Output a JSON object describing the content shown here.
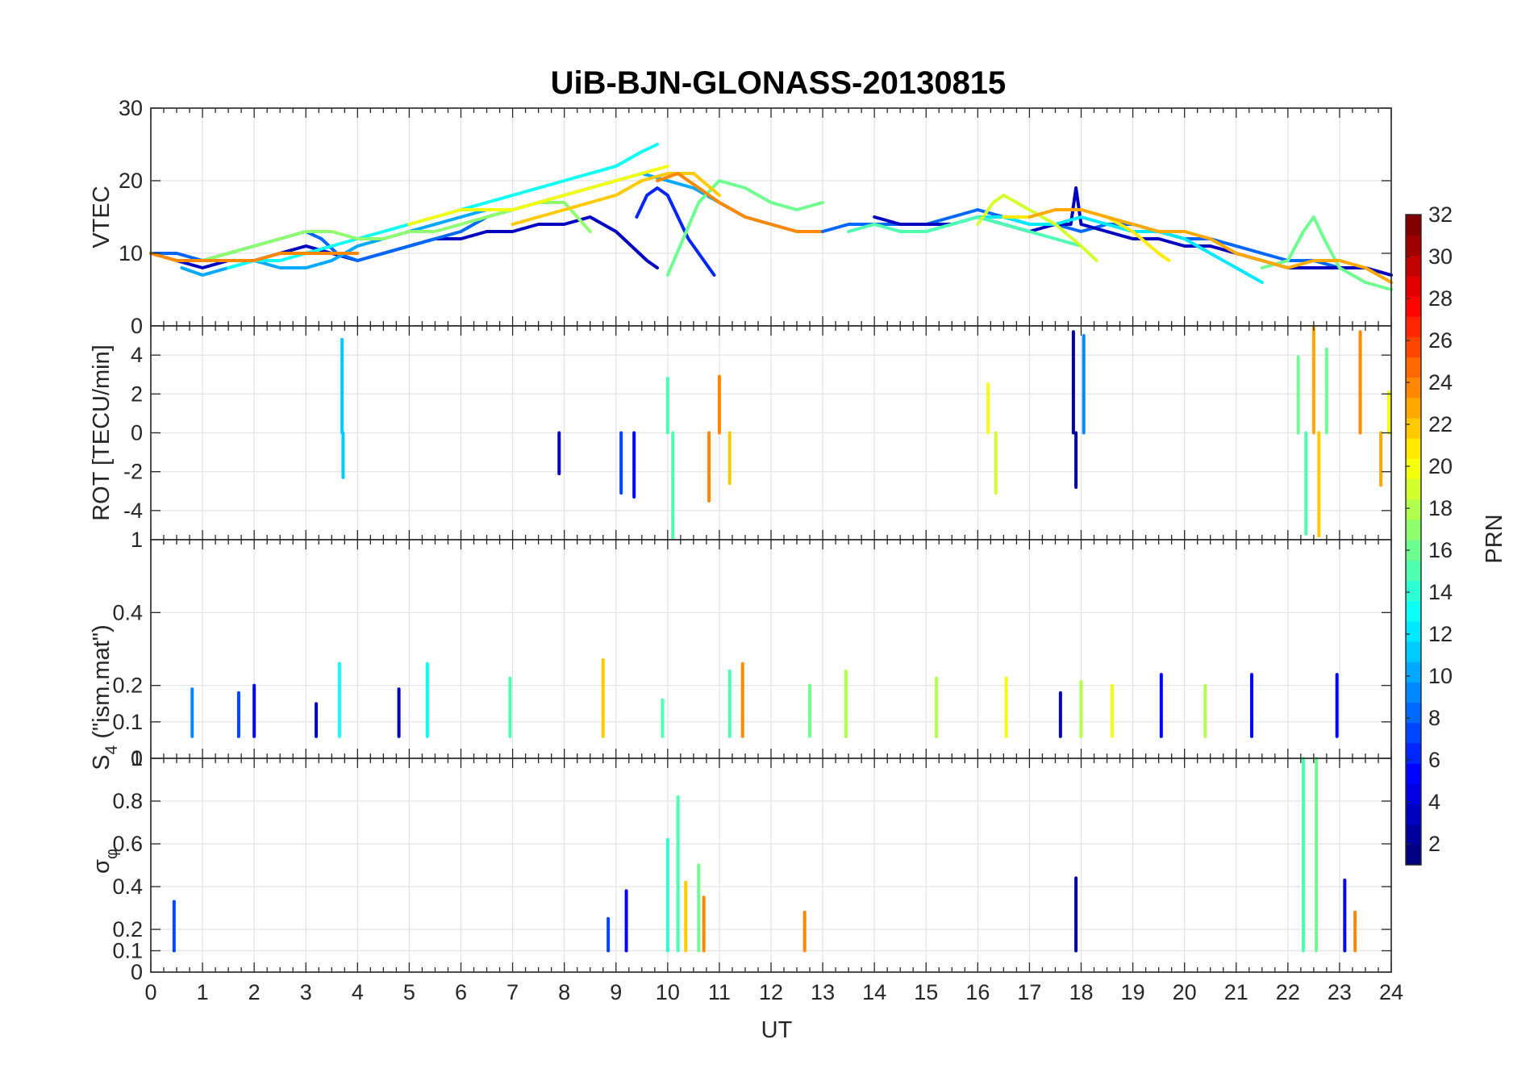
{
  "chart_data": {
    "type": "line",
    "title": "UiB-BJN-GLONASS-20130815",
    "xlabel": "UT",
    "xlim": [
      0,
      24
    ],
    "x_ticks": [
      "0",
      "1",
      "2",
      "3",
      "4",
      "5",
      "6",
      "7",
      "8",
      "9",
      "10",
      "11",
      "12",
      "13",
      "14",
      "15",
      "16",
      "17",
      "18",
      "19",
      "20",
      "21",
      "22",
      "23",
      "24"
    ],
    "grid": true,
    "colorbar": {
      "label": "PRN",
      "range": [
        1,
        32
      ],
      "ticks": [
        "2",
        "4",
        "6",
        "8",
        "10",
        "12",
        "14",
        "16",
        "18",
        "20",
        "22",
        "24",
        "26",
        "28",
        "30",
        "32"
      ],
      "colormap": "jet"
    },
    "panels": [
      {
        "name": "vtec",
        "ylabel": "VTEC",
        "ylim": [
          0,
          30
        ],
        "y_ticks": [
          "0",
          "10",
          "20",
          "30"
        ],
        "series": [
          {
            "prn": 3,
            "x": [
              0,
              0.5,
              1,
              1.5,
              2,
              2.5,
              3,
              3.5,
              4,
              4.5,
              5,
              5.5,
              6,
              6.5,
              7,
              7.5,
              8,
              8.5,
              9,
              9.3,
              9.6,
              9.8
            ],
            "y": [
              10,
              9,
              8,
              9,
              9,
              10,
              11,
              10,
              9,
              10,
              11,
              12,
              12,
              13,
              13,
              14,
              14,
              15,
              13,
              11,
              9,
              8
            ]
          },
          {
            "prn": 6,
            "x": [
              9.4,
              9.6,
              9.8,
              10,
              10.2,
              10.4,
              10.6,
              10.8,
              10.9
            ],
            "y": [
              15,
              18,
              19,
              18,
              15,
              12,
              10,
              8,
              7
            ]
          },
          {
            "prn": 8,
            "x": [
              0,
              0.5,
              1,
              1.5,
              2,
              2.5,
              3,
              3.3,
              3.6,
              4,
              4.5,
              5,
              5.5,
              6,
              6.5,
              7
            ],
            "y": [
              10,
              10,
              9,
              10,
              11,
              12,
              13,
              12,
              10,
              9,
              10,
              11,
              12,
              13,
              15,
              16
            ]
          },
          {
            "prn": 10,
            "x": [
              0.6,
              1,
              1.5,
              2,
              2.5,
              3,
              3.5,
              4,
              4.5,
              5,
              5.5,
              6,
              6.5,
              7,
              7.5,
              8,
              8.5,
              9,
              9.5,
              10,
              10.5,
              11,
              11.5,
              12,
              12.5,
              13
            ],
            "y": [
              8,
              7,
              8,
              9,
              8,
              8,
              9,
              11,
              12,
              13,
              14,
              15,
              16,
              16,
              17,
              18,
              19,
              20,
              21,
              20,
              19,
              17,
              15,
              14,
              13,
              13
            ]
          },
          {
            "prn": 13,
            "x": [
              1.5,
              2,
              2.5,
              3,
              3.5,
              4,
              4.5,
              5,
              5.5,
              6,
              6.5,
              7,
              7.5,
              8,
              8.5,
              9,
              9.5,
              9.8
            ],
            "y": [
              8,
              9,
              9,
              10,
              11,
              12,
              13,
              14,
              15,
              16,
              17,
              18,
              19,
              20,
              21,
              22,
              24,
              25
            ]
          },
          {
            "prn": 16,
            "x": [
              10,
              10.3,
              10.6,
              11,
              11.5,
              12,
              12.5,
              13
            ],
            "y": [
              7,
              12,
              17,
              20,
              19,
              17,
              16,
              17
            ]
          },
          {
            "prn": 17,
            "x": [
              0,
              0.5,
              1,
              1.5,
              2,
              2.5,
              3,
              3.5,
              4,
              4.5,
              5,
              5.5,
              6,
              6.5,
              7,
              7.5,
              8,
              8.5
            ],
            "y": [
              10,
              9,
              9,
              10,
              11,
              12,
              13,
              13,
              12,
              12,
              13,
              13,
              14,
              15,
              16,
              17,
              17,
              13
            ]
          },
          {
            "prn": 20,
            "x": [
              5,
              5.5,
              6,
              6.5,
              7,
              7.5,
              8,
              8.5,
              9,
              9.5,
              10
            ],
            "y": [
              14,
              15,
              16,
              16,
              16,
              17,
              18,
              19,
              20,
              21,
              22
            ]
          },
          {
            "prn": 22,
            "x": [
              7,
              7.5,
              8,
              8.5,
              9,
              9.5,
              10,
              10.5,
              11
            ],
            "y": [
              14,
              15,
              16,
              17,
              18,
              20,
              21,
              21,
              18
            ]
          },
          {
            "prn": 24,
            "x": [
              0,
              0.5,
              1,
              1.5,
              2,
              2.5,
              3,
              3.5,
              4
            ],
            "y": [
              10,
              9,
              9,
              9,
              9,
              10,
              10,
              10,
              10
            ]
          },
          {
            "prn": 24,
            "x": [
              9.8,
              10.2,
              10.6,
              11,
              11.5,
              12,
              12.5,
              13
            ],
            "y": [
              20,
              21,
              19,
              17,
              15,
              14,
              13,
              13
            ]
          },
          {
            "prn": 8,
            "x": [
              13,
              13.5,
              14,
              14.5,
              15,
              15.5,
              16,
              16.5,
              17,
              17.5,
              18,
              18.5,
              19,
              19.5,
              20,
              20.5,
              21,
              21.5,
              22,
              22.5,
              23,
              23.5,
              24
            ],
            "y": [
              13,
              14,
              14,
              14,
              14,
              15,
              16,
              15,
              14,
              14,
              13,
              14,
              14,
              13,
              12,
              12,
              11,
              10,
              9,
              9,
              8,
              8,
              7
            ]
          },
          {
            "prn": 3,
            "x": [
              14,
              14.5,
              15,
              15.5,
              16,
              16.5,
              17,
              17.5,
              17.8,
              17.9,
              18,
              18.5,
              19,
              19.5,
              20,
              20.5,
              21,
              21.5,
              22,
              22.5,
              23,
              23.5,
              24
            ],
            "y": [
              15,
              14,
              14,
              14,
              15,
              14,
              13,
              14,
              14,
              19,
              14,
              13,
              12,
              12,
              11,
              11,
              10,
              9,
              8,
              8,
              8,
              8,
              7
            ]
          },
          {
            "prn": 12,
            "x": [
              15,
              15.5,
              16,
              16.5,
              17,
              17.5,
              18,
              18.5,
              19,
              19.5,
              20,
              20.5,
              21,
              21.5
            ],
            "y": [
              13,
              14,
              15,
              15,
              14,
              14,
              15,
              14,
              13,
              13,
              12,
              10,
              8,
              6
            ]
          },
          {
            "prn": 15,
            "x": [
              13.5,
              14,
              14.5,
              15,
              15.5,
              16,
              16.5,
              17,
              17.5,
              18
            ],
            "y": [
              13,
              14,
              13,
              13,
              14,
              15,
              14,
              13,
              12,
              11
            ]
          },
          {
            "prn": 16,
            "x": [
              21.5,
              22,
              22.3,
              22.5,
              22.7,
              23,
              23.5,
              24
            ],
            "y": [
              8,
              9,
              13,
              15,
              12,
              8,
              6,
              5
            ]
          },
          {
            "prn": 19,
            "x": [
              16,
              16.3,
              16.5,
              17,
              17.5,
              18,
              18.3
            ],
            "y": [
              14,
              17,
              18,
              16,
              14,
              11,
              9
            ]
          },
          {
            "prn": 21,
            "x": [
              16.5,
              17,
              17.5,
              18,
              18.5,
              19,
              19.5,
              19.7
            ],
            "y": [
              15,
              15,
              16,
              16,
              15,
              13,
              10,
              9
            ]
          },
          {
            "prn": 23,
            "x": [
              17,
              17.5,
              18,
              18.5,
              19,
              19.5,
              20,
              20.5,
              21,
              21.5,
              22,
              22.5,
              23,
              23.5,
              24
            ],
            "y": [
              15,
              16,
              16,
              15,
              14,
              13,
              13,
              12,
              10,
              9,
              8,
              9,
              9,
              8,
              6
            ]
          }
        ]
      },
      {
        "name": "rot",
        "ylabel": "ROT [TECU/min]",
        "ylim": [
          -5.5,
          5.5
        ],
        "y_ticks": [
          "-4",
          "-2",
          "0",
          "2",
          "4"
        ],
        "spikes": [
          {
            "prn": 11,
            "x": 3.7,
            "y": 4.8
          },
          {
            "prn": 11,
            "x": 3.72,
            "y": -2.3
          },
          {
            "prn": 3,
            "x": 7.9,
            "y": -2.1
          },
          {
            "prn": 7,
            "x": 9.1,
            "y": -3.1
          },
          {
            "prn": 5,
            "x": 9.35,
            "y": -3.3
          },
          {
            "prn": 15,
            "x": 10.0,
            "y": 2.8
          },
          {
            "prn": 15,
            "x": 10.1,
            "y": -5.4
          },
          {
            "prn": 24,
            "x": 10.8,
            "y": -3.5
          },
          {
            "prn": 24,
            "x": 11.0,
            "y": 2.9
          },
          {
            "prn": 22,
            "x": 11.2,
            "y": -2.6
          },
          {
            "prn": 20,
            "x": 16.2,
            "y": 2.5
          },
          {
            "prn": 19,
            "x": 16.35,
            "y": -3.1
          },
          {
            "prn": 2,
            "x": 17.85,
            "y": 5.2
          },
          {
            "prn": 2,
            "x": 17.9,
            "y": -2.8
          },
          {
            "prn": 9,
            "x": 18.05,
            "y": 5.0
          },
          {
            "prn": 16,
            "x": 22.2,
            "y": 3.9
          },
          {
            "prn": 15,
            "x": 22.35,
            "y": -5.2
          },
          {
            "prn": 23,
            "x": 22.5,
            "y": 5.4
          },
          {
            "prn": 22,
            "x": 22.6,
            "y": -5.3
          },
          {
            "prn": 16,
            "x": 22.75,
            "y": 4.3
          },
          {
            "prn": 24,
            "x": 23.4,
            "y": 5.2
          },
          {
            "prn": 23,
            "x": 23.8,
            "y": -2.7
          },
          {
            "prn": 20,
            "x": 23.95,
            "y": 2.1
          }
        ]
      },
      {
        "name": "s4",
        "ylabel": "S4 (\"ism.mat\")",
        "ylim": [
          0,
          0.6
        ],
        "y_ticks": [
          "0",
          "0.1",
          "0.2",
          "0.4"
        ],
        "top_tick": "1",
        "spikes": [
          {
            "prn": 9,
            "x": 0.8,
            "y": 0.19
          },
          {
            "prn": 7,
            "x": 1.7,
            "y": 0.18
          },
          {
            "prn": 5,
            "x": 2.0,
            "y": 0.2
          },
          {
            "prn": 3,
            "x": 3.2,
            "y": 0.15
          },
          {
            "prn": 13,
            "x": 3.65,
            "y": 0.26
          },
          {
            "prn": 3,
            "x": 4.8,
            "y": 0.19
          },
          {
            "prn": 13,
            "x": 5.35,
            "y": 0.26
          },
          {
            "prn": 15,
            "x": 6.95,
            "y": 0.22
          },
          {
            "prn": 22,
            "x": 8.75,
            "y": 0.27
          },
          {
            "prn": 15,
            "x": 9.9,
            "y": 0.16
          },
          {
            "prn": 24,
            "x": 11.45,
            "y": 0.26
          },
          {
            "prn": 15,
            "x": 11.2,
            "y": 0.24
          },
          {
            "prn": 16,
            "x": 12.75,
            "y": 0.2
          },
          {
            "prn": 18,
            "x": 13.45,
            "y": 0.24
          },
          {
            "prn": 18,
            "x": 15.2,
            "y": 0.22
          },
          {
            "prn": 20,
            "x": 16.55,
            "y": 0.22
          },
          {
            "prn": 3,
            "x": 17.6,
            "y": 0.18
          },
          {
            "prn": 18,
            "x": 18.0,
            "y": 0.21
          },
          {
            "prn": 20,
            "x": 18.6,
            "y": 0.2
          },
          {
            "prn": 5,
            "x": 19.55,
            "y": 0.23
          },
          {
            "prn": 18,
            "x": 20.4,
            "y": 0.2
          },
          {
            "prn": 5,
            "x": 21.3,
            "y": 0.23
          },
          {
            "prn": 5,
            "x": 22.95,
            "y": 0.23
          }
        ]
      },
      {
        "name": "sigma_phi",
        "ylabel": "σφ",
        "ylim": [
          0,
          1.0
        ],
        "y_ticks": [
          "0",
          "0.1",
          "0.2",
          "0.4",
          "0.6",
          "0.8",
          "1"
        ],
        "spikes": [
          {
            "prn": 7,
            "x": 0.45,
            "y": 0.33
          },
          {
            "prn": 7,
            "x": 8.85,
            "y": 0.25
          },
          {
            "prn": 5,
            "x": 9.2,
            "y": 0.38
          },
          {
            "prn": 14,
            "x": 10.0,
            "y": 0.62
          },
          {
            "prn": 15,
            "x": 10.2,
            "y": 0.82
          },
          {
            "prn": 22,
            "x": 10.35,
            "y": 0.42
          },
          {
            "prn": 16,
            "x": 10.6,
            "y": 0.5
          },
          {
            "prn": 24,
            "x": 10.7,
            "y": 0.35
          },
          {
            "prn": 24,
            "x": 12.65,
            "y": 0.28
          },
          {
            "prn": 2,
            "x": 17.9,
            "y": 0.44
          },
          {
            "prn": 15,
            "x": 22.3,
            "y": 1.0
          },
          {
            "prn": 16,
            "x": 22.55,
            "y": 1.0
          },
          {
            "prn": 5,
            "x": 23.1,
            "y": 0.43
          },
          {
            "prn": 24,
            "x": 23.3,
            "y": 0.28
          }
        ]
      }
    ]
  }
}
